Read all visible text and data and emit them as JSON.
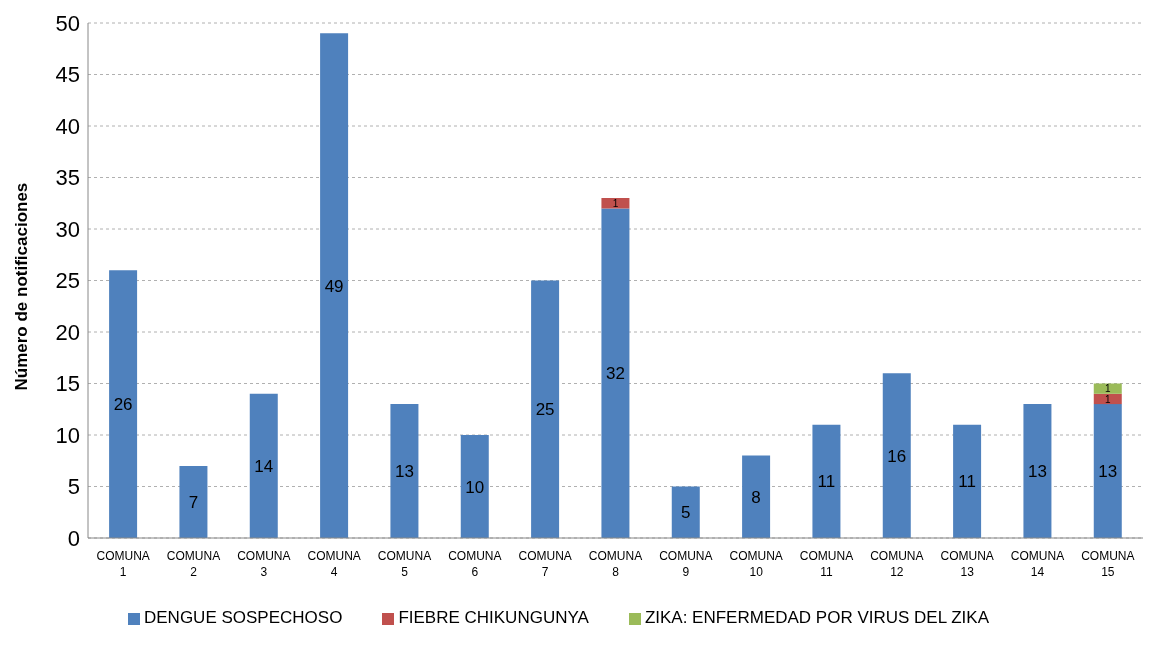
{
  "chart_data": {
    "type": "bar",
    "stacked": true,
    "ylabel": "Número de notificaciones",
    "categories": [
      "COMUNA 1",
      "COMUNA 2",
      "COMUNA 3",
      "COMUNA 4",
      "COMUNA 5",
      "COMUNA 6",
      "COMUNA 7",
      "COMUNA 8",
      "COMUNA 9",
      "COMUNA 10",
      "COMUNA 11",
      "COMUNA 12",
      "COMUNA 13",
      "COMUNA 14",
      "COMUNA 15"
    ],
    "series": [
      {
        "name": "DENGUE SOSPECHOSO",
        "color": "#4f81bd",
        "values": [
          26,
          7,
          14,
          49,
          13,
          10,
          25,
          32,
          5,
          8,
          11,
          16,
          11,
          13,
          13
        ]
      },
      {
        "name": "FIEBRE CHIKUNGUNYA",
        "color": "#c0504d",
        "values": [
          null,
          null,
          null,
          null,
          null,
          null,
          null,
          1,
          null,
          null,
          null,
          null,
          null,
          null,
          1
        ]
      },
      {
        "name": "ZIKA: ENFERMEDAD POR VIRUS DEL ZIKA",
        "color": "#9bbb59",
        "values": [
          null,
          null,
          null,
          null,
          null,
          null,
          null,
          null,
          null,
          null,
          null,
          null,
          null,
          null,
          1
        ]
      }
    ],
    "ylim": [
      0,
      50
    ],
    "yticks": [
      0,
      5,
      10,
      15,
      20,
      25,
      30,
      35,
      40,
      45,
      50
    ],
    "grid": "y",
    "legend": "bottom",
    "data_labels": true
  }
}
